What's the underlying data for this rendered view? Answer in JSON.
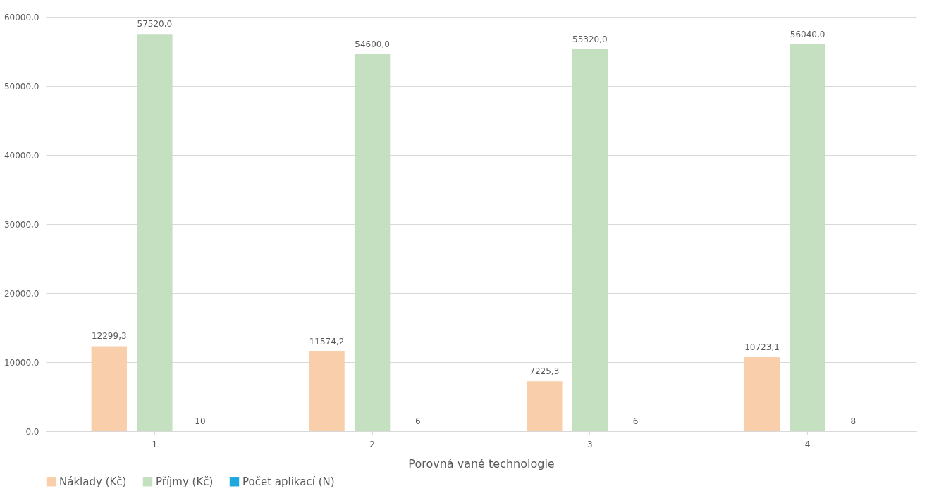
{
  "chart_data": {
    "type": "bar",
    "xlabel": "Porovná vané technologie",
    "categories": [
      "1",
      "2",
      "3",
      "4"
    ],
    "series": [
      {
        "name": "Náklady (Kč)",
        "color": "#f8cfaa",
        "values": [
          12299.3,
          11574.2,
          7225.3,
          10723.1
        ],
        "value_labels": [
          "12299,3",
          "11574,2",
          "7225,3",
          "10723,1"
        ]
      },
      {
        "name": "Příjmy (Kč)",
        "color": "#c5e0c0",
        "values": [
          57520.0,
          54600.0,
          55320.0,
          56040.0
        ],
        "value_labels": [
          "57520,0",
          "54600,0",
          "55320,0",
          "56040,0"
        ]
      },
      {
        "name": "Počet aplikací (N)",
        "color": "#1fa8e0",
        "values": [
          10,
          6,
          6,
          8
        ],
        "value_labels": [
          "10",
          "6",
          "6",
          "8"
        ]
      }
    ],
    "ylim": [
      0,
      60000
    ],
    "yticks": [
      {
        "value": 0,
        "label": "0,0"
      },
      {
        "value": 10000,
        "label": "10000,0"
      },
      {
        "value": 20000,
        "label": "20000,0"
      },
      {
        "value": 30000,
        "label": "30000,0"
      },
      {
        "value": 40000,
        "label": "40000,0"
      },
      {
        "value": 50000,
        "label": "50000,0"
      },
      {
        "value": 60000,
        "label": "60000,0"
      }
    ],
    "grid": "y",
    "legend": "bottom"
  }
}
